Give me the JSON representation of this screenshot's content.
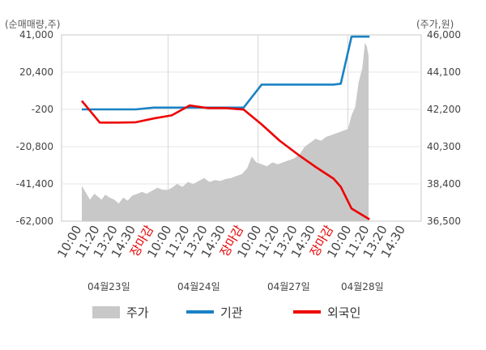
{
  "chart_data": {
    "type": "line",
    "left_unit": "(순매매량,주)",
    "right_unit": "(주가,원)",
    "left_ticks": [
      "41,000",
      "20,400",
      "-200",
      "-20,800",
      "-41,400",
      "-62,000"
    ],
    "left_tick_values": [
      41000,
      20400,
      -200,
      -20800,
      -41400,
      -62000
    ],
    "right_ticks": [
      "46,000",
      "44,100",
      "42,200",
      "40,300",
      "38,400",
      "36,500"
    ],
    "right_tick_values": [
      46000,
      44100,
      42200,
      40300,
      38400,
      36500
    ],
    "ylim_left": [
      -62000,
      41000
    ],
    "ylim_right": [
      36500,
      46000
    ],
    "x_ticks": [
      {
        "label": "10:00",
        "pos": 0.0,
        "red": false
      },
      {
        "label": "11:20",
        "pos": 1.0,
        "red": false
      },
      {
        "label": "13:20",
        "pos": 2.0,
        "red": false
      },
      {
        "label": "14:30",
        "pos": 3.0,
        "red": false
      },
      {
        "label": "장마감",
        "pos": 4.0,
        "red": true
      },
      {
        "label": "10:00",
        "pos": 5.0,
        "red": false
      },
      {
        "label": "11:20",
        "pos": 6.0,
        "red": false
      },
      {
        "label": "13:20",
        "pos": 7.0,
        "red": false
      },
      {
        "label": "14:30",
        "pos": 8.0,
        "red": false
      },
      {
        "label": "장마감",
        "pos": 9.0,
        "red": true
      },
      {
        "label": "10:00",
        "pos": 10.0,
        "red": false
      },
      {
        "label": "11:20",
        "pos": 11.0,
        "red": false
      },
      {
        "label": "13:20",
        "pos": 12.0,
        "red": false
      },
      {
        "label": "14:30",
        "pos": 13.0,
        "red": false
      },
      {
        "label": "장마감",
        "pos": 14.0,
        "red": true
      },
      {
        "label": "10:00",
        "pos": 15.0,
        "red": false
      },
      {
        "label": "11:20",
        "pos": 16.0,
        "red": false
      },
      {
        "label": "13:20",
        "pos": 17.0,
        "red": false
      },
      {
        "label": "14:30",
        "pos": 18.0,
        "red": false
      }
    ],
    "day_dividers": [
      4.8,
      9.8,
      14.8
    ],
    "dates": [
      {
        "label": "04월23일",
        "pos": 1.5
      },
      {
        "label": "04월24일",
        "pos": 6.5
      },
      {
        "label": "04월27일",
        "pos": 11.5
      },
      {
        "label": "04월28일",
        "pos": 15.6
      }
    ],
    "series": [
      {
        "name": "주가",
        "kind": "area",
        "color": "#c8c8c8",
        "points": [
          [
            0.0,
            38300
          ],
          [
            0.2,
            38000
          ],
          [
            0.45,
            37600
          ],
          [
            0.7,
            37900
          ],
          [
            0.9,
            37750
          ],
          [
            1.1,
            37600
          ],
          [
            1.3,
            37850
          ],
          [
            1.55,
            37700
          ],
          [
            1.8,
            37600
          ],
          [
            2.05,
            37400
          ],
          [
            2.3,
            37700
          ],
          [
            2.55,
            37550
          ],
          [
            2.8,
            37800
          ],
          [
            3.1,
            37900
          ],
          [
            3.35,
            38000
          ],
          [
            3.6,
            37900
          ],
          [
            3.9,
            38050
          ],
          [
            4.2,
            38200
          ],
          [
            4.5,
            38100
          ],
          [
            4.8,
            38100
          ],
          [
            5.0,
            38200
          ],
          [
            5.3,
            38400
          ],
          [
            5.6,
            38250
          ],
          [
            5.9,
            38500
          ],
          [
            6.2,
            38400
          ],
          [
            6.5,
            38550
          ],
          [
            6.8,
            38700
          ],
          [
            7.1,
            38500
          ],
          [
            7.4,
            38600
          ],
          [
            7.7,
            38550
          ],
          [
            8.0,
            38650
          ],
          [
            8.3,
            38700
          ],
          [
            8.6,
            38800
          ],
          [
            8.9,
            38900
          ],
          [
            9.2,
            39200
          ],
          [
            9.45,
            39800
          ],
          [
            9.7,
            39500
          ],
          [
            10.0,
            39400
          ],
          [
            10.3,
            39300
          ],
          [
            10.6,
            39500
          ],
          [
            10.9,
            39400
          ],
          [
            11.2,
            39500
          ],
          [
            11.5,
            39600
          ],
          [
            11.8,
            39700
          ],
          [
            12.1,
            39900
          ],
          [
            12.4,
            40300
          ],
          [
            12.7,
            40500
          ],
          [
            13.0,
            40700
          ],
          [
            13.3,
            40600
          ],
          [
            13.6,
            40800
          ],
          [
            13.9,
            40900
          ],
          [
            14.2,
            41000
          ],
          [
            14.5,
            41100
          ],
          [
            14.8,
            41200
          ],
          [
            15.0,
            41900
          ],
          [
            15.2,
            42300
          ],
          [
            15.4,
            43600
          ],
          [
            15.6,
            44300
          ],
          [
            15.75,
            45600
          ],
          [
            15.85,
            45400
          ],
          [
            15.95,
            44900
          ]
        ]
      },
      {
        "name": "기관",
        "kind": "line",
        "color": "#1a82c4",
        "points": [
          [
            0.0,
            -200
          ],
          [
            1.0,
            -200
          ],
          [
            2.0,
            -200
          ],
          [
            3.0,
            -200
          ],
          [
            4.0,
            800
          ],
          [
            5.0,
            800
          ],
          [
            6.0,
            800
          ],
          [
            7.0,
            800
          ],
          [
            8.0,
            800
          ],
          [
            9.0,
            800
          ],
          [
            10.0,
            13500
          ],
          [
            11.0,
            13500
          ],
          [
            12.0,
            13500
          ],
          [
            13.0,
            13500
          ],
          [
            14.0,
            13500
          ],
          [
            14.4,
            14000
          ],
          [
            15.0,
            40000
          ],
          [
            15.5,
            40000
          ],
          [
            16.0,
            40000
          ]
        ]
      },
      {
        "name": "외국인",
        "kind": "line",
        "color": "#ee0000",
        "points": [
          [
            0.0,
            4500
          ],
          [
            1.0,
            -7500
          ],
          [
            2.0,
            -7500
          ],
          [
            3.0,
            -7300
          ],
          [
            4.0,
            -5200
          ],
          [
            5.0,
            -3500
          ],
          [
            6.0,
            2000
          ],
          [
            7.0,
            500
          ],
          [
            8.0,
            500
          ],
          [
            9.0,
            -300
          ],
          [
            10.0,
            -8500
          ],
          [
            11.0,
            -17500
          ],
          [
            12.0,
            -25000
          ],
          [
            13.0,
            -32000
          ],
          [
            14.0,
            -38500
          ],
          [
            14.4,
            -43000
          ],
          [
            15.0,
            -55000
          ],
          [
            15.5,
            -58000
          ],
          [
            16.0,
            -61000
          ]
        ]
      }
    ],
    "legend": [
      {
        "name": "주가",
        "kind": "area",
        "color": "#c8c8c8"
      },
      {
        "name": "기관",
        "kind": "line",
        "color": "#1a82c4"
      },
      {
        "name": "외국인",
        "kind": "line",
        "color": "#ee0000"
      }
    ],
    "grid": true,
    "legend_position": "bottom"
  }
}
